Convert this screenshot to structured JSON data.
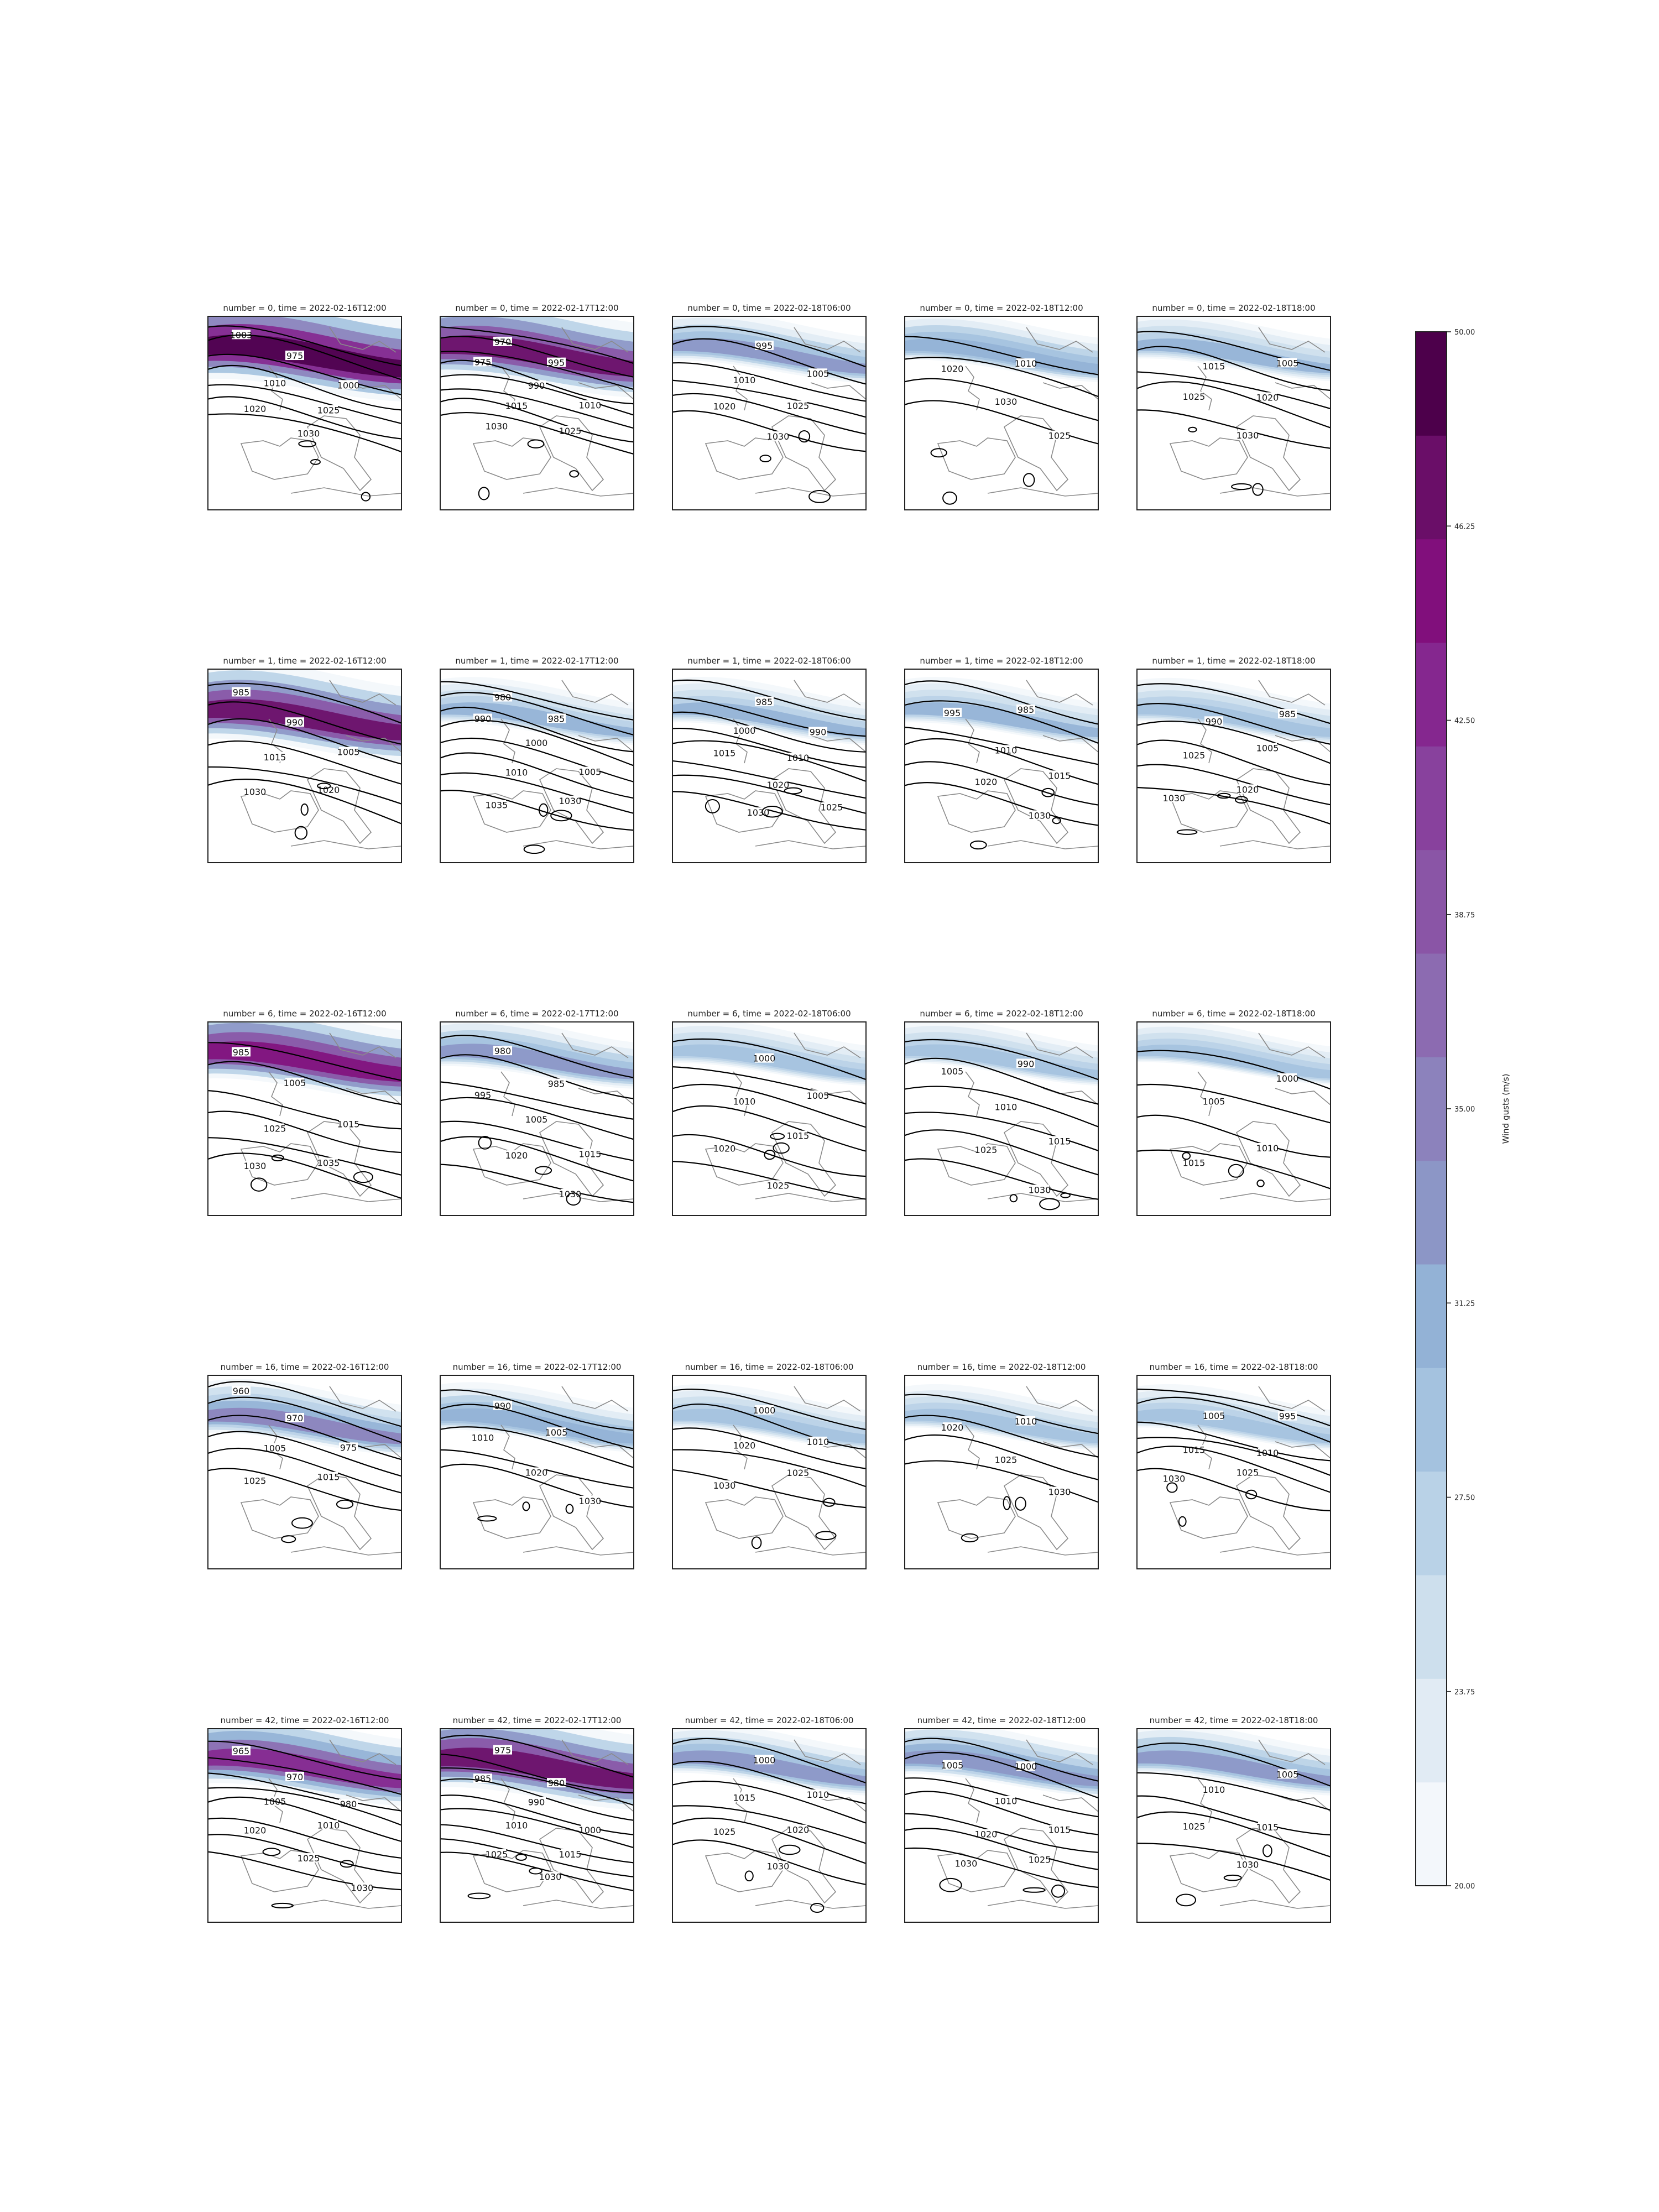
{
  "chart_data": {
    "type": "contour map grid",
    "rows": [
      0,
      1,
      6,
      16,
      42
    ],
    "columns": [
      "2022-02-16T12:00",
      "2022-02-17T12:00",
      "2022-02-18T06:00",
      "2022-02-18T12:00",
      "2022-02-18T18:00"
    ],
    "panels": [
      {
        "title": "number = 0, time = 2022-02-16T12:00",
        "number": 0,
        "time": "2022-02-16T12:00",
        "max_gust": 50,
        "isobar_labels": [
          "1003",
          "975",
          "1000",
          "1010",
          "1025",
          "1020",
          "1030"
        ]
      },
      {
        "title": "number = 0, time = 2022-02-17T12:00",
        "number": 0,
        "time": "2022-02-17T12:00",
        "max_gust": 46,
        "isobar_labels": [
          "970",
          "995",
          "975",
          "990",
          "1010",
          "1015",
          "1025",
          "1030"
        ]
      },
      {
        "title": "number = 0, time = 2022-02-18T06:00",
        "number": 0,
        "time": "2022-02-18T06:00",
        "max_gust": 32,
        "isobar_labels": [
          "995",
          "1005",
          "1010",
          "1025",
          "1020",
          "1030"
        ]
      },
      {
        "title": "number = 0, time = 2022-02-18T12:00",
        "number": 0,
        "time": "2022-02-18T12:00",
        "max_gust": 31,
        "isobar_labels": [
          "1010",
          "1020",
          "1030",
          "1025"
        ]
      },
      {
        "title": "number = 0, time = 2022-02-18T18:00",
        "number": 0,
        "time": "2022-02-18T18:00",
        "max_gust": 30,
        "isobar_labels": [
          "1005",
          "1015",
          "1020",
          "1025",
          "1030"
        ]
      },
      {
        "title": "number = 1, time = 2022-02-16T12:00",
        "number": 1,
        "time": "2022-02-16T12:00",
        "max_gust": 46,
        "isobar_labels": [
          "985",
          "990",
          "1005",
          "1015",
          "1020",
          "1030"
        ]
      },
      {
        "title": "number = 1, time = 2022-02-17T12:00",
        "number": 1,
        "time": "2022-02-17T12:00",
        "max_gust": 30,
        "isobar_labels": [
          "980",
          "985",
          "990",
          "1000",
          "1005",
          "1010",
          "1030",
          "1035"
        ]
      },
      {
        "title": "number = 1, time = 2022-02-18T06:00",
        "number": 1,
        "time": "2022-02-18T06:00",
        "max_gust": 30,
        "isobar_labels": [
          "985",
          "990",
          "1000",
          "1010",
          "1015",
          "1020",
          "1025",
          "1030"
        ]
      },
      {
        "title": "number = 1, time = 2022-02-18T12:00",
        "number": 1,
        "time": "2022-02-18T12:00",
        "max_gust": 30,
        "isobar_labels": [
          "985",
          "995",
          "1010",
          "1015",
          "1020",
          "1030"
        ]
      },
      {
        "title": "number = 1, time = 2022-02-18T18:00",
        "number": 1,
        "time": "2022-02-18T18:00",
        "max_gust": 29,
        "isobar_labels": [
          "985",
          "990",
          "1005",
          "1025",
          "1020",
          "1030"
        ]
      },
      {
        "title": "number = 6, time = 2022-02-16T12:00",
        "number": 6,
        "time": "2022-02-16T12:00",
        "max_gust": 44,
        "isobar_labels": [
          "985",
          "1005",
          "1015",
          "1025",
          "1035",
          "1030"
        ]
      },
      {
        "title": "number = 6, time = 2022-02-17T12:00",
        "number": 6,
        "time": "2022-02-17T12:00",
        "max_gust": 32,
        "isobar_labels": [
          "980",
          "985",
          "995",
          "1005",
          "1015",
          "1020",
          "1030"
        ]
      },
      {
        "title": "number = 6, time = 2022-02-18T06:00",
        "number": 6,
        "time": "2022-02-18T06:00",
        "max_gust": 29,
        "isobar_labels": [
          "1000",
          "1005",
          "1010",
          "1015",
          "1020",
          "1025"
        ]
      },
      {
        "title": "number = 6, time = 2022-02-18T12:00",
        "number": 6,
        "time": "2022-02-18T12:00",
        "max_gust": 29,
        "isobar_labels": [
          "990",
          "1005",
          "1010",
          "1015",
          "1025",
          "1030"
        ]
      },
      {
        "title": "number = 6, time = 2022-02-18T18:00",
        "number": 6,
        "time": "2022-02-18T18:00",
        "max_gust": 28,
        "isobar_labels": [
          "1000",
          "1005",
          "1010",
          "1015"
        ]
      },
      {
        "title": "number = 16, time = 2022-02-16T12:00",
        "number": 16,
        "time": "2022-02-16T12:00",
        "max_gust": 34,
        "isobar_labels": [
          "960",
          "970",
          "975",
          "1005",
          "1015",
          "1025"
        ]
      },
      {
        "title": "number = 16, time = 2022-02-17T12:00",
        "number": 16,
        "time": "2022-02-17T12:00",
        "max_gust": 31,
        "isobar_labels": [
          "990",
          "1005",
          "1010",
          "1020",
          "1030"
        ]
      },
      {
        "title": "number = 16, time = 2022-02-18T06:00",
        "number": 16,
        "time": "2022-02-18T06:00",
        "max_gust": 29,
        "isobar_labels": [
          "1000",
          "1010",
          "1020",
          "1025",
          "1030"
        ]
      },
      {
        "title": "number = 16, time = 2022-02-18T12:00",
        "number": 16,
        "time": "2022-02-18T12:00",
        "max_gust": 29,
        "isobar_labels": [
          "1010",
          "1020",
          "1025",
          "1030"
        ]
      },
      {
        "title": "number = 16, time = 2022-02-18T18:00",
        "number": 16,
        "time": "2022-02-18T18:00",
        "max_gust": 29,
        "isobar_labels": [
          "995",
          "1005",
          "1010",
          "1015",
          "1025",
          "1030"
        ]
      },
      {
        "title": "number = 42, time = 2022-02-16T12:00",
        "number": 42,
        "time": "2022-02-16T12:00",
        "max_gust": 42,
        "isobar_labels": [
          "965",
          "970",
          "980",
          "1005",
          "1010",
          "1020",
          "1025",
          "1030"
        ]
      },
      {
        "title": "number = 42, time = 2022-02-17T12:00",
        "number": 42,
        "time": "2022-02-17T12:00",
        "max_gust": 46,
        "isobar_labels": [
          "975",
          "980",
          "985",
          "990",
          "1000",
          "1010",
          "1015",
          "1025",
          "1030"
        ]
      },
      {
        "title": "number = 42, time = 2022-02-18T06:00",
        "number": 42,
        "time": "2022-02-18T06:00",
        "max_gust": 32,
        "isobar_labels": [
          "1000",
          "1010",
          "1015",
          "1020",
          "1025",
          "1030"
        ]
      },
      {
        "title": "number = 42, time = 2022-02-18T12:00",
        "number": 42,
        "time": "2022-02-18T12:00",
        "max_gust": 33,
        "isobar_labels": [
          "1000",
          "1005",
          "1010",
          "1015",
          "1020",
          "1025",
          "1030"
        ]
      },
      {
        "title": "number = 42, time = 2022-02-18T18:00",
        "number": 42,
        "time": "2022-02-18T18:00",
        "max_gust": 32,
        "isobar_labels": [
          "1005",
          "1010",
          "1015",
          "1025",
          "1030"
        ]
      }
    ],
    "colorbar": {
      "label": "Wind gusts (m/s)",
      "range": [
        20,
        50
      ],
      "ticks": [
        "20.00",
        "23.75",
        "27.50",
        "31.25",
        "35.00",
        "38.75",
        "42.50",
        "46.25",
        "50.00"
      ],
      "levels": 16,
      "colormap": [
        "#f3f7fb",
        "#e1ebf4",
        "#cddfed",
        "#b9d2e7",
        "#a4c2df",
        "#93b2d6",
        "#8c96c6",
        "#8c82bc",
        "#8c6bb1",
        "#8a55a6",
        "#88419d",
        "#85278f",
        "#810f7c",
        "#6a0e68",
        "#4d004b"
      ]
    }
  }
}
